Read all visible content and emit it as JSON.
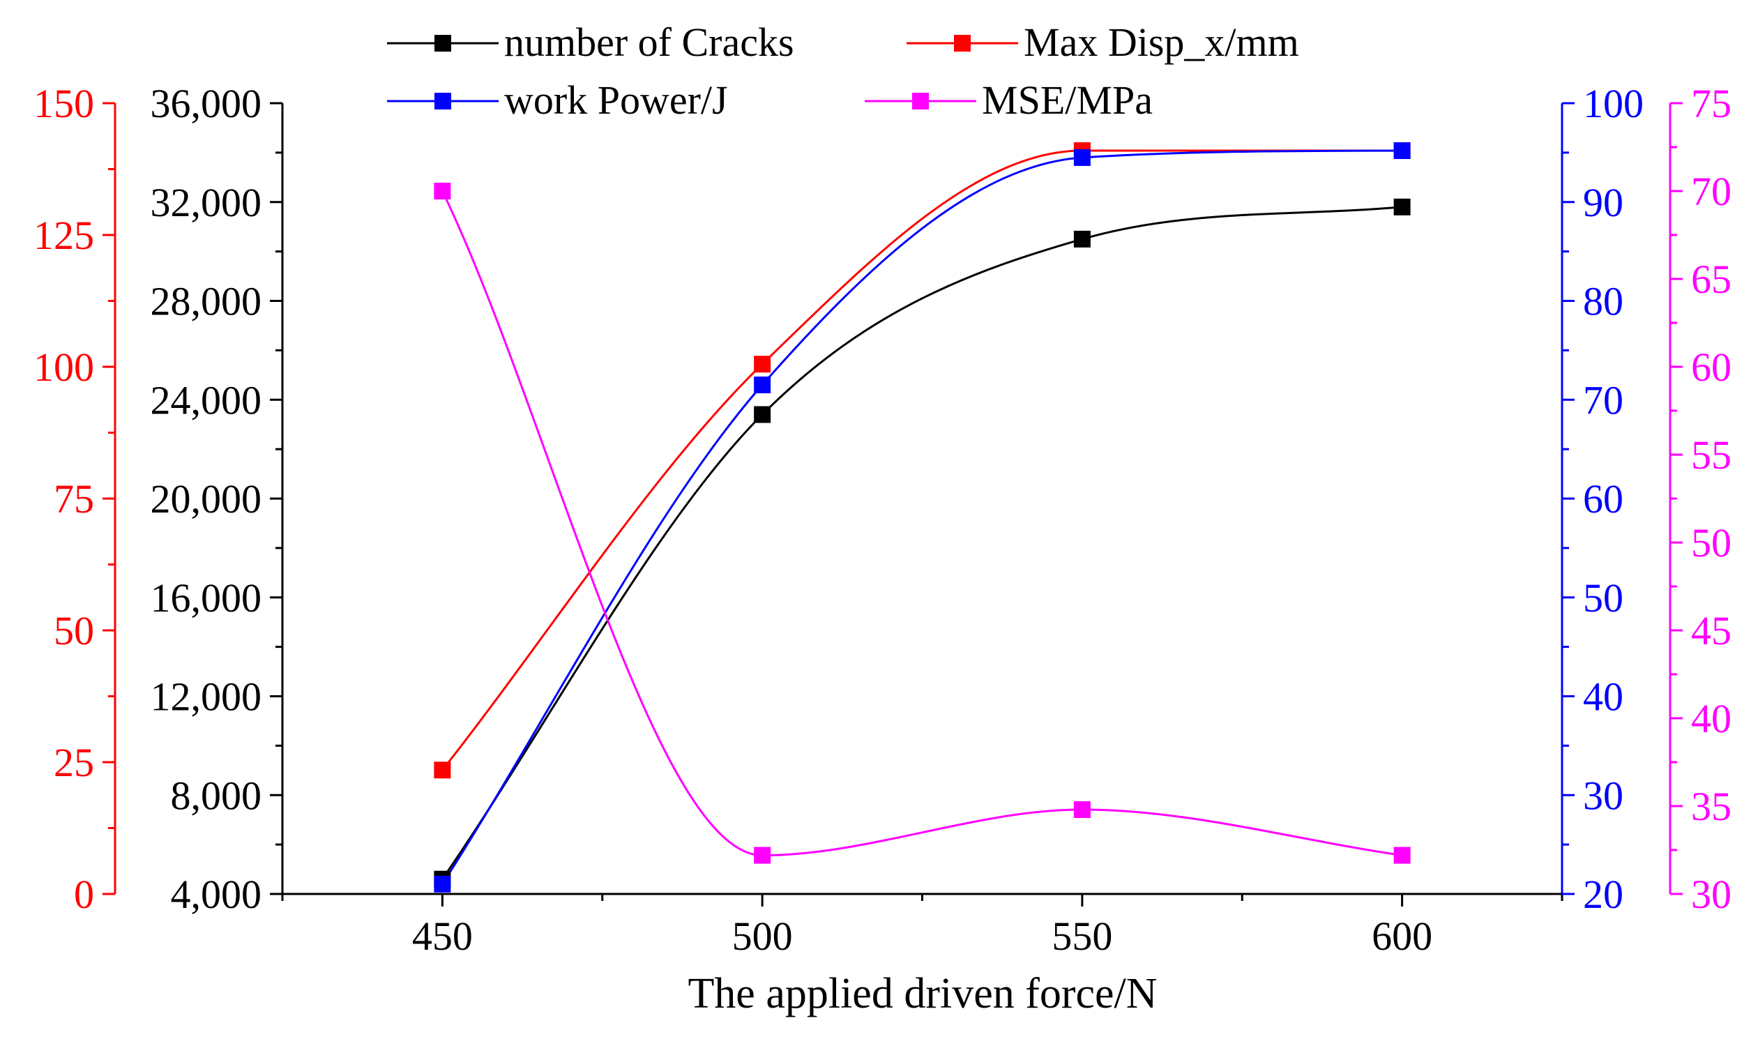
{
  "chart_data": {
    "type": "scatter",
    "xlabel": "The applied driven force/N",
    "x": [
      450,
      500,
      550,
      600
    ],
    "xlim": [
      425,
      625
    ],
    "xticks": [
      450,
      500,
      550,
      600
    ],
    "x_tick_labels": [
      "450",
      "500",
      "550",
      "600"
    ],
    "series": [
      {
        "name": "number of Cracks",
        "color": "#000000",
        "axis": "y_cracks",
        "values": [
          4600,
          23400,
          30500,
          31800
        ]
      },
      {
        "name": "Max Disp_x/mm",
        "color": "#ff0000",
        "axis": "y_disp",
        "values": [
          23.5,
          100.5,
          141,
          141
        ]
      },
      {
        "name": "work Power/J",
        "color": "#0000ff",
        "axis": "y_power",
        "values": [
          21,
          71.5,
          94.5,
          95.2
        ]
      },
      {
        "name": "MSE/MPa",
        "color": "#ff00ff",
        "axis": "y_mse",
        "values": [
          70,
          32.2,
          34.8,
          32.2
        ]
      }
    ],
    "axes": {
      "y_disp": {
        "color": "#ff0000",
        "side": "left-outer",
        "ylim": [
          0,
          150
        ],
        "ticks": [
          0,
          25,
          50,
          75,
          100,
          125,
          150
        ],
        "tick_labels": [
          "0",
          "25",
          "50",
          "75",
          "100",
          "125",
          "150"
        ]
      },
      "y_cracks": {
        "color": "#000000",
        "side": "left",
        "ylim": [
          4000,
          36000
        ],
        "ticks": [
          4000,
          8000,
          12000,
          16000,
          20000,
          24000,
          28000,
          32000,
          36000
        ],
        "tick_labels": [
          "4,000",
          "8,000",
          "12,000",
          "16,000",
          "20,000",
          "24,000",
          "28,000",
          "32,000",
          "36,000"
        ]
      },
      "y_power": {
        "color": "#0000ff",
        "side": "right",
        "ylim": [
          20,
          100
        ],
        "ticks": [
          20,
          30,
          40,
          50,
          60,
          70,
          80,
          90,
          100
        ],
        "tick_labels": [
          "20",
          "30",
          "40",
          "50",
          "60",
          "70",
          "80",
          "90",
          "100"
        ]
      },
      "y_mse": {
        "color": "#ff00ff",
        "side": "right-outer",
        "ylim": [
          30,
          75
        ],
        "ticks": [
          30,
          35,
          40,
          45,
          50,
          55,
          60,
          65,
          70,
          75
        ],
        "tick_labels": [
          "30",
          "35",
          "40",
          "45",
          "50",
          "55",
          "60",
          "65",
          "70",
          "75"
        ]
      }
    },
    "legend": {
      "placement": "top",
      "entries": [
        "number of Cracks",
        "Max Disp_x/mm",
        "work Power/J",
        "MSE/MPa"
      ]
    }
  }
}
